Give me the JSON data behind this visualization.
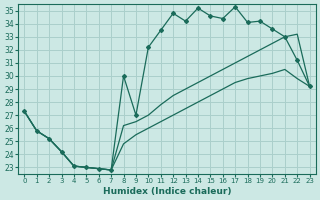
{
  "xlabel": "Humidex (Indice chaleur)",
  "ylabel": "",
  "background_color": "#cce8e4",
  "grid_color": "#aacfcb",
  "line_color": "#1a6b5a",
  "xlim": [
    -0.5,
    23.5
  ],
  "ylim": [
    22.5,
    35.5
  ],
  "xticks": [
    0,
    1,
    2,
    3,
    4,
    5,
    6,
    7,
    8,
    9,
    10,
    11,
    12,
    13,
    14,
    15,
    16,
    17,
    18,
    19,
    20,
    21,
    22,
    23
  ],
  "yticks": [
    23,
    24,
    25,
    26,
    27,
    28,
    29,
    30,
    31,
    32,
    33,
    34,
    35
  ],
  "line1_x": [
    0,
    1,
    2,
    3,
    4,
    5,
    6,
    7,
    8,
    9,
    10,
    11,
    12,
    13,
    14,
    15,
    16,
    17,
    18,
    19,
    20,
    21,
    22,
    23
  ],
  "line1_y": [
    27.3,
    25.8,
    25.2,
    24.2,
    23.1,
    23.0,
    22.9,
    22.8,
    30.0,
    27.0,
    32.2,
    33.5,
    34.8,
    34.2,
    35.2,
    34.6,
    34.4,
    35.3,
    34.1,
    34.2,
    33.6,
    33.0,
    31.2,
    29.2
  ],
  "line2_x": [
    0,
    1,
    2,
    3,
    4,
    5,
    6,
    7,
    8,
    9,
    10,
    11,
    12,
    13,
    14,
    15,
    16,
    17,
    18,
    19,
    20,
    21,
    22,
    23
  ],
  "line2_y": [
    27.3,
    25.8,
    25.2,
    24.2,
    23.1,
    23.0,
    22.9,
    22.8,
    26.2,
    26.5,
    27.0,
    27.8,
    28.5,
    29.0,
    29.5,
    30.0,
    30.5,
    31.0,
    31.5,
    32.0,
    32.5,
    33.0,
    33.2,
    29.2
  ],
  "line3_x": [
    0,
    1,
    2,
    3,
    4,
    5,
    6,
    7,
    8,
    9,
    10,
    11,
    12,
    13,
    14,
    15,
    16,
    17,
    18,
    19,
    20,
    21,
    22,
    23
  ],
  "line3_y": [
    27.3,
    25.8,
    25.2,
    24.2,
    23.1,
    23.0,
    22.9,
    22.8,
    24.8,
    25.5,
    26.0,
    26.5,
    27.0,
    27.5,
    28.0,
    28.5,
    29.0,
    29.5,
    29.8,
    30.0,
    30.2,
    30.5,
    29.8,
    29.2
  ]
}
